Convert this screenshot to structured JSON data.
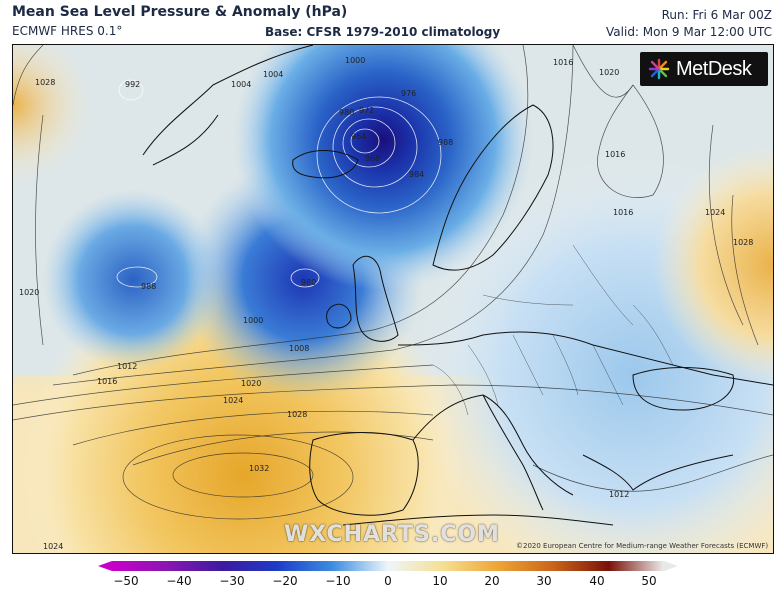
{
  "header": {
    "title": "Mean Sea Level Pressure & Anomaly (hPa)",
    "model": "ECMWF HRES 0.1°",
    "base": "Base: CFSR 1979-2010 climatology",
    "run": "Run: Fri 6 Mar 00Z",
    "valid": "Valid: Mon 9 Mar 12:00 UTC"
  },
  "logo": {
    "text": "MetDesk",
    "icon": "metdesk-star-logo-icon"
  },
  "watermark": "WXCHARTS.COM",
  "copyright": "©2020 European Centre for Medium-range Weather Forecasts (ECMWF)",
  "colorbar": {
    "ticks": [
      "−50",
      "−40",
      "−30",
      "−20",
      "−10",
      "0",
      "10",
      "20",
      "30",
      "40",
      "50"
    ],
    "colors": [
      "#b400c8",
      "#7a1aa8",
      "#3a1e9c",
      "#1e3cc8",
      "#3c8ee0",
      "#d8ecf8",
      "#f6e3a0",
      "#f0b43c",
      "#d2781e",
      "#8c1e0a",
      "#5a0a0a",
      "#e8e8e8"
    ]
  },
  "isobars": {
    "labels": [
      "992",
      "1004",
      "1004",
      "1000",
      "976",
      "972",
      "968",
      "964",
      "980",
      "988",
      "984",
      "980",
      "988",
      "1000",
      "1008",
      "1012",
      "1016",
      "1020",
      "1024",
      "1028",
      "1032",
      "1016",
      "1020",
      "1016",
      "1024",
      "1028",
      "1028",
      "1020",
      "1012",
      "1024",
      "1016"
    ]
  }
}
